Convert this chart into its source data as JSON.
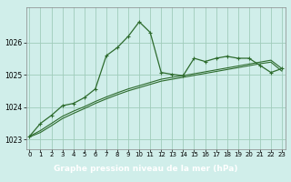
{
  "bg_color": "#d0eeea",
  "grid_color": "#a0ccbb",
  "line_color": "#2d6b2d",
  "label_bg": "#3a7a3a",
  "label_fg": "#ffffff",
  "xlabel": "Graphe pression niveau de la mer (hPa)",
  "ylim": [
    1022.7,
    1027.1
  ],
  "xlim": [
    -0.3,
    23.3
  ],
  "yticks": [
    1023,
    1024,
    1025,
    1026
  ],
  "xticks": [
    0,
    1,
    2,
    3,
    4,
    5,
    6,
    7,
    8,
    9,
    10,
    11,
    12,
    13,
    14,
    15,
    16,
    17,
    18,
    19,
    20,
    21,
    22,
    23
  ],
  "hours": [
    0,
    1,
    2,
    3,
    4,
    5,
    6,
    7,
    8,
    9,
    10,
    11,
    12,
    13,
    14,
    15,
    16,
    17,
    18,
    19,
    20,
    21,
    22,
    23
  ],
  "pressure_main": [
    1023.1,
    1023.5,
    1023.75,
    1024.05,
    1024.12,
    1024.3,
    1024.57,
    1025.6,
    1025.85,
    1026.2,
    1026.65,
    1026.32,
    1025.08,
    1025.02,
    1024.98,
    1025.52,
    1025.42,
    1025.52,
    1025.58,
    1025.52,
    1025.52,
    1025.3,
    1025.08,
    1025.2
  ],
  "pressure_trend1": [
    1023.1,
    1023.28,
    1023.5,
    1023.72,
    1023.88,
    1024.02,
    1024.18,
    1024.32,
    1024.45,
    1024.57,
    1024.67,
    1024.77,
    1024.87,
    1024.93,
    1024.98,
    1025.04,
    1025.1,
    1025.16,
    1025.22,
    1025.28,
    1025.34,
    1025.4,
    1025.46,
    1025.2
  ],
  "pressure_trend2": [
    1023.08,
    1023.22,
    1023.43,
    1023.65,
    1023.81,
    1023.96,
    1024.12,
    1024.26,
    1024.39,
    1024.51,
    1024.61,
    1024.71,
    1024.81,
    1024.87,
    1024.93,
    1024.99,
    1025.05,
    1025.11,
    1025.17,
    1025.23,
    1025.29,
    1025.35,
    1025.4,
    1025.12
  ]
}
